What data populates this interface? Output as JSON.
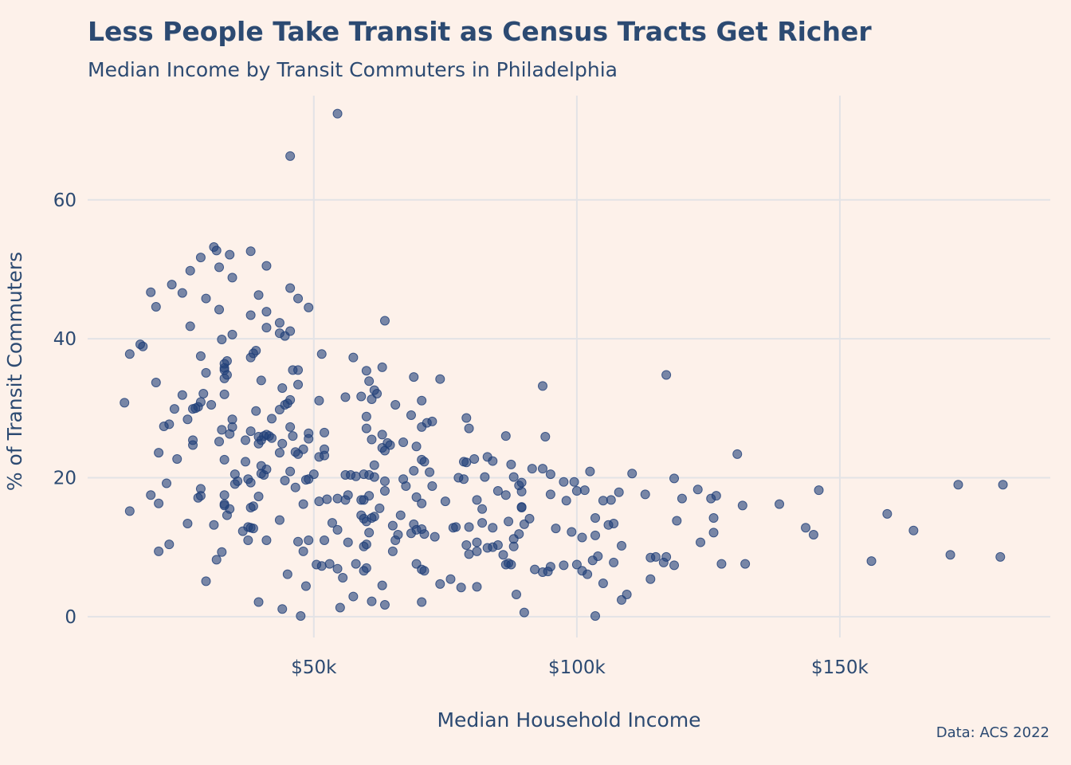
{
  "chart_data": {
    "type": "scatter",
    "title": "Less People Take Transit as Census Tracts Get Richer",
    "subtitle": "Median Income by Transit Commuters in Philadelphia",
    "caption": "Data: ACS 2022",
    "xlabel": "Median Household Income",
    "ylabel": "% of Transit Commuters",
    "x_unit": "thousand USD",
    "xlim": [
      7,
      190
    ],
    "ylim": [
      -3,
      75
    ],
    "x_ticks": [
      {
        "value": 50,
        "label": "$50k"
      },
      {
        "value": 100,
        "label": "$100k"
      },
      {
        "value": 150,
        "label": "$150k"
      }
    ],
    "y_ticks": [
      {
        "value": 0,
        "label": "0"
      },
      {
        "value": 20,
        "label": "20"
      },
      {
        "value": 40,
        "label": "40"
      },
      {
        "value": 60,
        "label": "60"
      }
    ],
    "grid": true,
    "legend": "none",
    "point_color": "#1f3f78",
    "points": [
      [
        54.5,
        72.4
      ],
      [
        45.5,
        66.3
      ],
      [
        31,
        53.2
      ],
      [
        31.5,
        52.7
      ],
      [
        38,
        52.6
      ],
      [
        34,
        52.1
      ],
      [
        28.5,
        51.7
      ],
      [
        41,
        50.5
      ],
      [
        32,
        50.3
      ],
      [
        26.5,
        49.8
      ],
      [
        34.5,
        48.8
      ],
      [
        23,
        47.8
      ],
      [
        45.5,
        47.3
      ],
      [
        19,
        46.7
      ],
      [
        25,
        46.6
      ],
      [
        39.5,
        46.3
      ],
      [
        29.5,
        45.8
      ],
      [
        47,
        45.8
      ],
      [
        20,
        44.6
      ],
      [
        32,
        44.2
      ],
      [
        49,
        44.5
      ],
      [
        38,
        43.4
      ],
      [
        41,
        43.9
      ],
      [
        43.5,
        42.3
      ],
      [
        63.5,
        42.6
      ],
      [
        26.5,
        41.8
      ],
      [
        41,
        41.6
      ],
      [
        45.5,
        41.1
      ],
      [
        43.5,
        40.8
      ],
      [
        44.5,
        40.4
      ],
      [
        34.5,
        40.6
      ],
      [
        32.5,
        39.9
      ],
      [
        17,
        39.2
      ],
      [
        17.5,
        38.9
      ],
      [
        39,
        38.3
      ],
      [
        38.5,
        37.9
      ],
      [
        51.5,
        37.8
      ],
      [
        15,
        37.8
      ],
      [
        38,
        37.3
      ],
      [
        57.5,
        37.3
      ],
      [
        28.5,
        37.5
      ],
      [
        33.5,
        36.8
      ],
      [
        33,
        36.4
      ],
      [
        33,
        35.8
      ],
      [
        33,
        35.5
      ],
      [
        46,
        35.5
      ],
      [
        47,
        35.5
      ],
      [
        60,
        35.4
      ],
      [
        63,
        35.9
      ],
      [
        29.5,
        35.1
      ],
      [
        33.5,
        34.8
      ],
      [
        33,
        34.3
      ],
      [
        69,
        34.5
      ],
      [
        74,
        34.2
      ],
      [
        117,
        34.8
      ],
      [
        20,
        33.7
      ],
      [
        40,
        34.0
      ],
      [
        47,
        33.4
      ],
      [
        60.5,
        33.9
      ],
      [
        44,
        32.9
      ],
      [
        93.5,
        33.2
      ],
      [
        29,
        32.1
      ],
      [
        33,
        32.0
      ],
      [
        25,
        31.9
      ],
      [
        61.5,
        32.6
      ],
      [
        62,
        32.1
      ],
      [
        56,
        31.6
      ],
      [
        59,
        31.7
      ],
      [
        45.5,
        31.2
      ],
      [
        51,
        31.1
      ],
      [
        61,
        31.3
      ],
      [
        70.5,
        31.1
      ],
      [
        14,
        30.8
      ],
      [
        28.5,
        30.9
      ],
      [
        30.5,
        30.5
      ],
      [
        44.5,
        30.5
      ],
      [
        45,
        30.7
      ],
      [
        65.5,
        30.5
      ],
      [
        28,
        30.2
      ],
      [
        27.5,
        30.0
      ],
      [
        27,
        29.9
      ],
      [
        23.5,
        29.9
      ],
      [
        43.5,
        29.8
      ],
      [
        39,
        29.6
      ],
      [
        60,
        28.8
      ],
      [
        68.5,
        29.0
      ],
      [
        79,
        28.6
      ],
      [
        26,
        28.4
      ],
      [
        34.5,
        28.4
      ],
      [
        42,
        28.5
      ],
      [
        72.5,
        28.1
      ],
      [
        22.5,
        27.7
      ],
      [
        21.5,
        27.4
      ],
      [
        34.5,
        27.3
      ],
      [
        32.5,
        26.9
      ],
      [
        38,
        26.7
      ],
      [
        45.5,
        27.3
      ],
      [
        60,
        27.1
      ],
      [
        70.5,
        27.3
      ],
      [
        71.5,
        27.9
      ],
      [
        79.5,
        27.1
      ],
      [
        34,
        26.3
      ],
      [
        40.5,
        26.0
      ],
      [
        41,
        26.2
      ],
      [
        41.5,
        26.0
      ],
      [
        46,
        26.0
      ],
      [
        49,
        26.4
      ],
      [
        52,
        26.5
      ],
      [
        63,
        26.2
      ],
      [
        86.5,
        26.0
      ],
      [
        94,
        25.9
      ],
      [
        27,
        25.4
      ],
      [
        32,
        25.2
      ],
      [
        37,
        25.4
      ],
      [
        39.5,
        25.9
      ],
      [
        40,
        25.4
      ],
      [
        42,
        25.7
      ],
      [
        49,
        25.6
      ],
      [
        61,
        25.5
      ],
      [
        64,
        25.0
      ],
      [
        27,
        24.7
      ],
      [
        39.5,
        24.9
      ],
      [
        44,
        24.9
      ],
      [
        67,
        25.1
      ],
      [
        69.5,
        24.5
      ],
      [
        63,
        24.3
      ],
      [
        64.5,
        24.7
      ],
      [
        48,
        24.1
      ],
      [
        52,
        24.1
      ],
      [
        63.5,
        23.9
      ],
      [
        20.5,
        23.6
      ],
      [
        43.5,
        23.6
      ],
      [
        46.5,
        23.7
      ],
      [
        47,
        23.4
      ],
      [
        52,
        23.2
      ],
      [
        51,
        23.0
      ],
      [
        130.5,
        23.4
      ],
      [
        33,
        22.6
      ],
      [
        37,
        22.3
      ],
      [
        24,
        22.7
      ],
      [
        70.5,
        22.6
      ],
      [
        78.5,
        22.3
      ],
      [
        80.5,
        22.7
      ],
      [
        83,
        23.0
      ],
      [
        84,
        22.4
      ],
      [
        79,
        22.2
      ],
      [
        71,
        22.3
      ],
      [
        61.5,
        21.8
      ],
      [
        87.5,
        21.9
      ],
      [
        91.5,
        21.3
      ],
      [
        93.5,
        21.3
      ],
      [
        40,
        21.7
      ],
      [
        41,
        21.2
      ],
      [
        45.5,
        20.9
      ],
      [
        69,
        21.0
      ],
      [
        72,
        20.8
      ],
      [
        102.5,
        20.9
      ],
      [
        110.5,
        20.6
      ],
      [
        35,
        20.5
      ],
      [
        40,
        20.6
      ],
      [
        40.5,
        20.4
      ],
      [
        50,
        20.5
      ],
      [
        56,
        20.4
      ],
      [
        57,
        20.4
      ],
      [
        58,
        20.2
      ],
      [
        59.5,
        20.5
      ],
      [
        60.5,
        20.4
      ],
      [
        61.5,
        20.1
      ],
      [
        67,
        19.8
      ],
      [
        77.5,
        20.0
      ],
      [
        82.5,
        20.1
      ],
      [
        88,
        20.1
      ],
      [
        95,
        20.5
      ],
      [
        118.5,
        19.9
      ],
      [
        35.5,
        19.5
      ],
      [
        37.5,
        19.8
      ],
      [
        38,
        19.3
      ],
      [
        44.5,
        19.6
      ],
      [
        48.5,
        19.7
      ],
      [
        49,
        19.8
      ],
      [
        63.5,
        19.5
      ],
      [
        78.5,
        19.8
      ],
      [
        89.5,
        19.3
      ],
      [
        97.5,
        19.4
      ],
      [
        99.5,
        19.4
      ],
      [
        172.5,
        19.0
      ],
      [
        181,
        19.0
      ],
      [
        22,
        19.2
      ],
      [
        28.5,
        18.4
      ],
      [
        35,
        19.1
      ],
      [
        46.5,
        18.6
      ],
      [
        63.5,
        18.1
      ],
      [
        67.5,
        18.8
      ],
      [
        72.5,
        18.8
      ],
      [
        89,
        18.9
      ],
      [
        100,
        18.1
      ],
      [
        101.5,
        18.2
      ],
      [
        108,
        17.9
      ],
      [
        113,
        17.6
      ],
      [
        123,
        18.3
      ],
      [
        146,
        18.2
      ],
      [
        19,
        17.5
      ],
      [
        28.5,
        17.4
      ],
      [
        33,
        17.5
      ],
      [
        39.5,
        17.3
      ],
      [
        56.5,
        17.5
      ],
      [
        60.5,
        17.4
      ],
      [
        69.5,
        17.2
      ],
      [
        85,
        18.1
      ],
      [
        86.5,
        17.5
      ],
      [
        89.5,
        18.0
      ],
      [
        95,
        17.6
      ],
      [
        120,
        17.0
      ],
      [
        125.5,
        17.0
      ],
      [
        126.5,
        17.4
      ],
      [
        28,
        17.1
      ],
      [
        52.5,
        16.9
      ],
      [
        54.5,
        17.0
      ],
      [
        56,
        16.8
      ],
      [
        59,
        16.8
      ],
      [
        59.5,
        16.8
      ],
      [
        81,
        16.8
      ],
      [
        98,
        16.7
      ],
      [
        105,
        16.7
      ],
      [
        106.5,
        16.8
      ],
      [
        33,
        16.2
      ],
      [
        20.5,
        16.3
      ],
      [
        38,
        15.7
      ],
      [
        38.5,
        15.9
      ],
      [
        48,
        16.2
      ],
      [
        51,
        16.6
      ],
      [
        70.5,
        16.3
      ],
      [
        75,
        16.6
      ],
      [
        89.5,
        15.8
      ],
      [
        89.5,
        15.7
      ],
      [
        131.5,
        16.0
      ],
      [
        138.5,
        16.2
      ],
      [
        15,
        15.2
      ],
      [
        34,
        15.5
      ],
      [
        33.5,
        14.6
      ],
      [
        59,
        14.6
      ],
      [
        62.5,
        15.6
      ],
      [
        82,
        15.5
      ],
      [
        66.5,
        14.6
      ],
      [
        61,
        14.2
      ],
      [
        61.5,
        14.4
      ],
      [
        59.5,
        14.1
      ],
      [
        60,
        13.7
      ],
      [
        91,
        14.1
      ],
      [
        103.5,
        14.2
      ],
      [
        126,
        14.2
      ],
      [
        159,
        14.8
      ],
      [
        26,
        13.4
      ],
      [
        31,
        13.2
      ],
      [
        33,
        16.0
      ],
      [
        37.5,
        12.9
      ],
      [
        38,
        12.8
      ],
      [
        43.5,
        13.9
      ],
      [
        53.5,
        13.5
      ],
      [
        65,
        13.1
      ],
      [
        69,
        13.3
      ],
      [
        77,
        12.9
      ],
      [
        79.5,
        12.9
      ],
      [
        82,
        13.5
      ],
      [
        84,
        12.8
      ],
      [
        87,
        13.7
      ],
      [
        90,
        13.3
      ],
      [
        96,
        12.7
      ],
      [
        106,
        13.2
      ],
      [
        107,
        13.4
      ],
      [
        119,
        13.8
      ],
      [
        143.5,
        12.8
      ],
      [
        164,
        12.4
      ],
      [
        36.5,
        12.3
      ],
      [
        38.5,
        12.7
      ],
      [
        54.5,
        12.5
      ],
      [
        60.5,
        12.1
      ],
      [
        68.5,
        12.0
      ],
      [
        69.5,
        12.5
      ],
      [
        70.5,
        12.6
      ],
      [
        71,
        11.9
      ],
      [
        76.5,
        12.8
      ],
      [
        99,
        12.2
      ],
      [
        103.5,
        11.7
      ],
      [
        126,
        12.1
      ],
      [
        37.5,
        11.0
      ],
      [
        41,
        11.0
      ],
      [
        47,
        10.8
      ],
      [
        49,
        11.0
      ],
      [
        52,
        11.0
      ],
      [
        56.5,
        10.7
      ],
      [
        59.5,
        10.1
      ],
      [
        60,
        10.4
      ],
      [
        65.5,
        11.0
      ],
      [
        66,
        11.8
      ],
      [
        73,
        11.5
      ],
      [
        79,
        10.3
      ],
      [
        81,
        10.7
      ],
      [
        84,
        10.0
      ],
      [
        85,
        10.3
      ],
      [
        88,
        11.2
      ],
      [
        89,
        11.9
      ],
      [
        101,
        11.4
      ],
      [
        108.5,
        10.2
      ],
      [
        123.5,
        10.7
      ],
      [
        145,
        11.8
      ],
      [
        22.5,
        10.4
      ],
      [
        20.5,
        9.4
      ],
      [
        32.5,
        9.3
      ],
      [
        48,
        9.4
      ],
      [
        65,
        9.4
      ],
      [
        79.5,
        9.0
      ],
      [
        81,
        9.4
      ],
      [
        83,
        9.9
      ],
      [
        86,
        8.9
      ],
      [
        88,
        10.1
      ],
      [
        104,
        8.7
      ],
      [
        31.5,
        8.2
      ],
      [
        50.5,
        7.5
      ],
      [
        51.5,
        7.3
      ],
      [
        53,
        7.6
      ],
      [
        58,
        7.6
      ],
      [
        60,
        7.0
      ],
      [
        59.5,
        6.6
      ],
      [
        69.5,
        7.6
      ],
      [
        70.5,
        6.8
      ],
      [
        71,
        6.6
      ],
      [
        86.5,
        7.5
      ],
      [
        87,
        7.7
      ],
      [
        92,
        6.8
      ],
      [
        93.5,
        6.4
      ],
      [
        94.5,
        6.5
      ],
      [
        95,
        7.2
      ],
      [
        97.5,
        7.4
      ],
      [
        100,
        7.5
      ],
      [
        101,
        6.6
      ],
      [
        102,
        6.1
      ],
      [
        103,
        8.1
      ],
      [
        107,
        7.8
      ],
      [
        114,
        8.5
      ],
      [
        115,
        8.6
      ],
      [
        117,
        8.6
      ],
      [
        118.5,
        7.4
      ],
      [
        127.5,
        7.6
      ],
      [
        132,
        7.6
      ],
      [
        156,
        8.0
      ],
      [
        171,
        8.9
      ],
      [
        180.5,
        8.6
      ],
      [
        87.5,
        7.5
      ],
      [
        114,
        5.4
      ],
      [
        116.5,
        7.8
      ],
      [
        29.5,
        5.1
      ],
      [
        45,
        6.1
      ],
      [
        54.5,
        6.9
      ],
      [
        55.5,
        5.6
      ],
      [
        105,
        4.8
      ],
      [
        48.5,
        4.4
      ],
      [
        76,
        5.4
      ],
      [
        74,
        4.7
      ],
      [
        78,
        4.2
      ],
      [
        81,
        4.3
      ],
      [
        63,
        4.5
      ],
      [
        88.5,
        3.2
      ],
      [
        109.5,
        3.2
      ],
      [
        57.5,
        2.9
      ],
      [
        61,
        2.2
      ],
      [
        63.5,
        1.7
      ],
      [
        70.5,
        2.1
      ],
      [
        108.5,
        2.4
      ],
      [
        39.5,
        2.1
      ],
      [
        44,
        1.1
      ],
      [
        55,
        1.3
      ],
      [
        47.5,
        0.1
      ],
      [
        90,
        0.6
      ],
      [
        103.5,
        0.1
      ]
    ]
  }
}
